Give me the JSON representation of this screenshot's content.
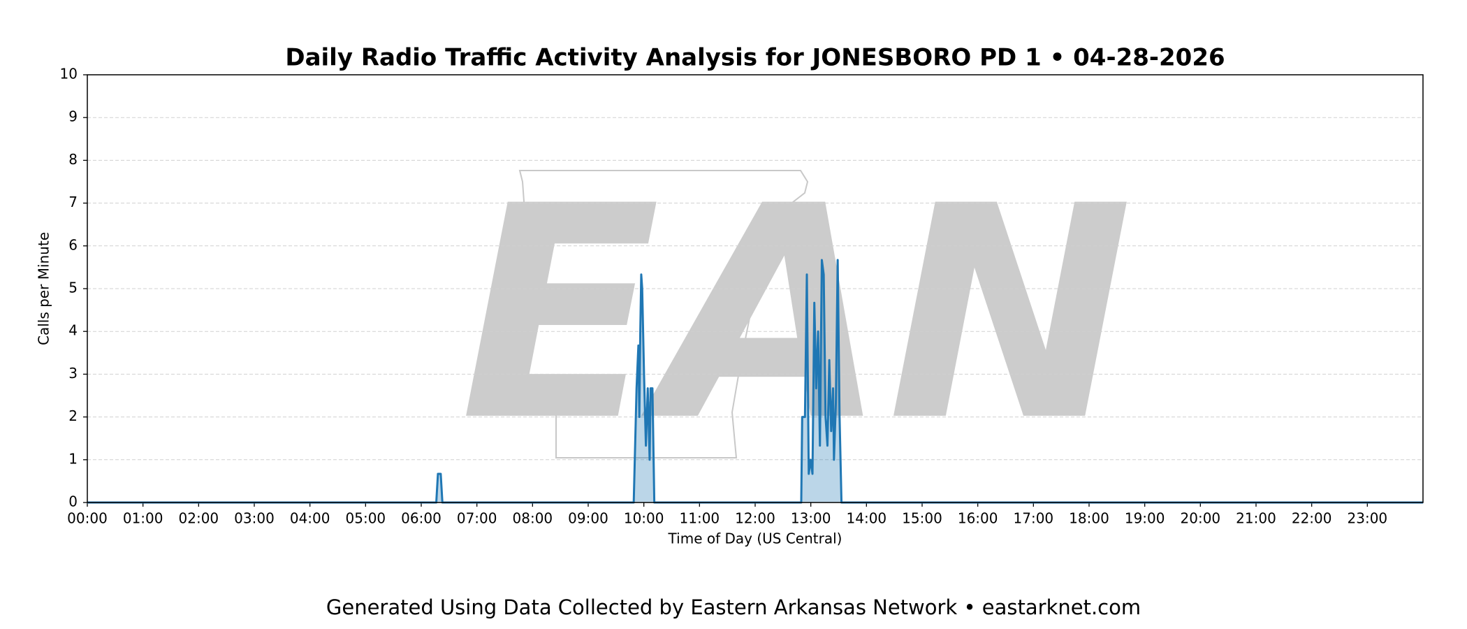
{
  "chart_data": {
    "type": "line",
    "title": "Daily Radio Traffic Activity Analysis for JONESBORO PD 1 • 04-28-2026",
    "x_label": "Time of Day (US Central)",
    "y_label": "Calls per Minute",
    "watermark": "EAN",
    "footer": "Generated Using Data Collected by Eastern Arkansas Network • eastarknet.com",
    "xlim": [
      0,
      24
    ],
    "ylim": [
      0,
      10
    ],
    "yticks": [
      0,
      1,
      2,
      3,
      4,
      5,
      6,
      7,
      8,
      9,
      10
    ],
    "xticks": [
      {
        "value": 0,
        "label": "00:00"
      },
      {
        "value": 1,
        "label": "01:00"
      },
      {
        "value": 2,
        "label": "02:00"
      },
      {
        "value": 3,
        "label": "03:00"
      },
      {
        "value": 4,
        "label": "04:00"
      },
      {
        "value": 5,
        "label": "05:00"
      },
      {
        "value": 6,
        "label": "06:00"
      },
      {
        "value": 7,
        "label": "07:00"
      },
      {
        "value": 8,
        "label": "08:00"
      },
      {
        "value": 9,
        "label": "09:00"
      },
      {
        "value": 10,
        "label": "10:00"
      },
      {
        "value": 11,
        "label": "11:00"
      },
      {
        "value": 12,
        "label": "12:00"
      },
      {
        "value": 13,
        "label": "13:00"
      },
      {
        "value": 14,
        "label": "14:00"
      },
      {
        "value": 15,
        "label": "15:00"
      },
      {
        "value": 16,
        "label": "16:00"
      },
      {
        "value": 17,
        "label": "17:00"
      },
      {
        "value": 18,
        "label": "18:00"
      },
      {
        "value": 19,
        "label": "19:00"
      },
      {
        "value": 20,
        "label": "20:00"
      },
      {
        "value": 21,
        "label": "21:00"
      },
      {
        "value": 22,
        "label": "22:00"
      },
      {
        "value": 23,
        "label": "23:00"
      }
    ],
    "grid": true,
    "series": [
      {
        "color": "#1f77b4",
        "fill": "#1f77b4",
        "x": [
          0,
          6.27,
          6.3,
          6.35,
          6.38,
          9.818,
          9.869,
          9.902,
          9.919,
          9.936,
          9.953,
          9.97,
          10.003,
          10.037,
          10.07,
          10.104,
          10.121,
          10.154,
          10.188,
          12.828,
          12.845,
          12.895,
          12.929,
          12.963,
          12.996,
          13.03,
          13.063,
          13.097,
          13.131,
          13.164,
          13.198,
          13.232,
          13.265,
          13.299,
          13.332,
          13.366,
          13.4,
          13.416,
          13.45,
          13.483,
          13.517,
          13.551,
          24
        ],
        "values": [
          0,
          0,
          0.67,
          0.67,
          0,
          0,
          2.67,
          3.67,
          2,
          4,
          5.33,
          5,
          3,
          1.33,
          2.67,
          1,
          2.67,
          2.67,
          0,
          0,
          2,
          2,
          5.33,
          0.67,
          1,
          0.67,
          4.67,
          2.67,
          4,
          1.33,
          5.67,
          5.33,
          2,
          1.33,
          3.33,
          1.67,
          2.67,
          1,
          2.33,
          5.67,
          2,
          0,
          0
        ]
      }
    ]
  }
}
